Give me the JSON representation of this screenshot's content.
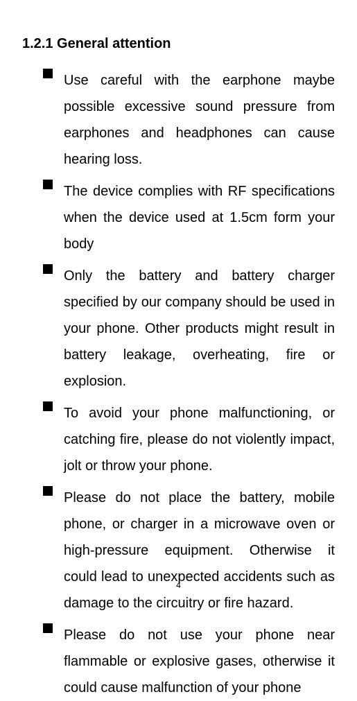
{
  "heading": "1.2.1 General attention",
  "bullets": [
    "Use careful with the earphone maybe possible excessive sound pressure from earphones and headphones can cause hearing loss.",
    "The device complies with RF specifications when the device used at 1.5cm form your body",
    "Only the battery and battery charger specified by our company should be used in your phone. Other products might result in battery leakage, overheating, fire or explosion.",
    "To avoid your phone malfunctioning, or catching fire, please do not violently impact, jolt or throw your phone.",
    "Please do not place the battery, mobile phone, or charger in a microwave oven or high-pressure equipment. Otherwise it could lead to unexpected accidents such as damage to the circuitry or fire hazard.",
    "Please do not use your phone near flammable or explosive gases, otherwise it could cause malfunction of your phone"
  ],
  "page_number": "4",
  "styles": {
    "background_color": "#ffffff",
    "text_color": "#000000",
    "heading_fontsize": 20,
    "body_fontsize": 20,
    "page_number_fontsize": 12,
    "line_height": 1.9,
    "bullet_marker_size": 14,
    "bullet_marker_color": "#000000",
    "text_align": "justify"
  }
}
